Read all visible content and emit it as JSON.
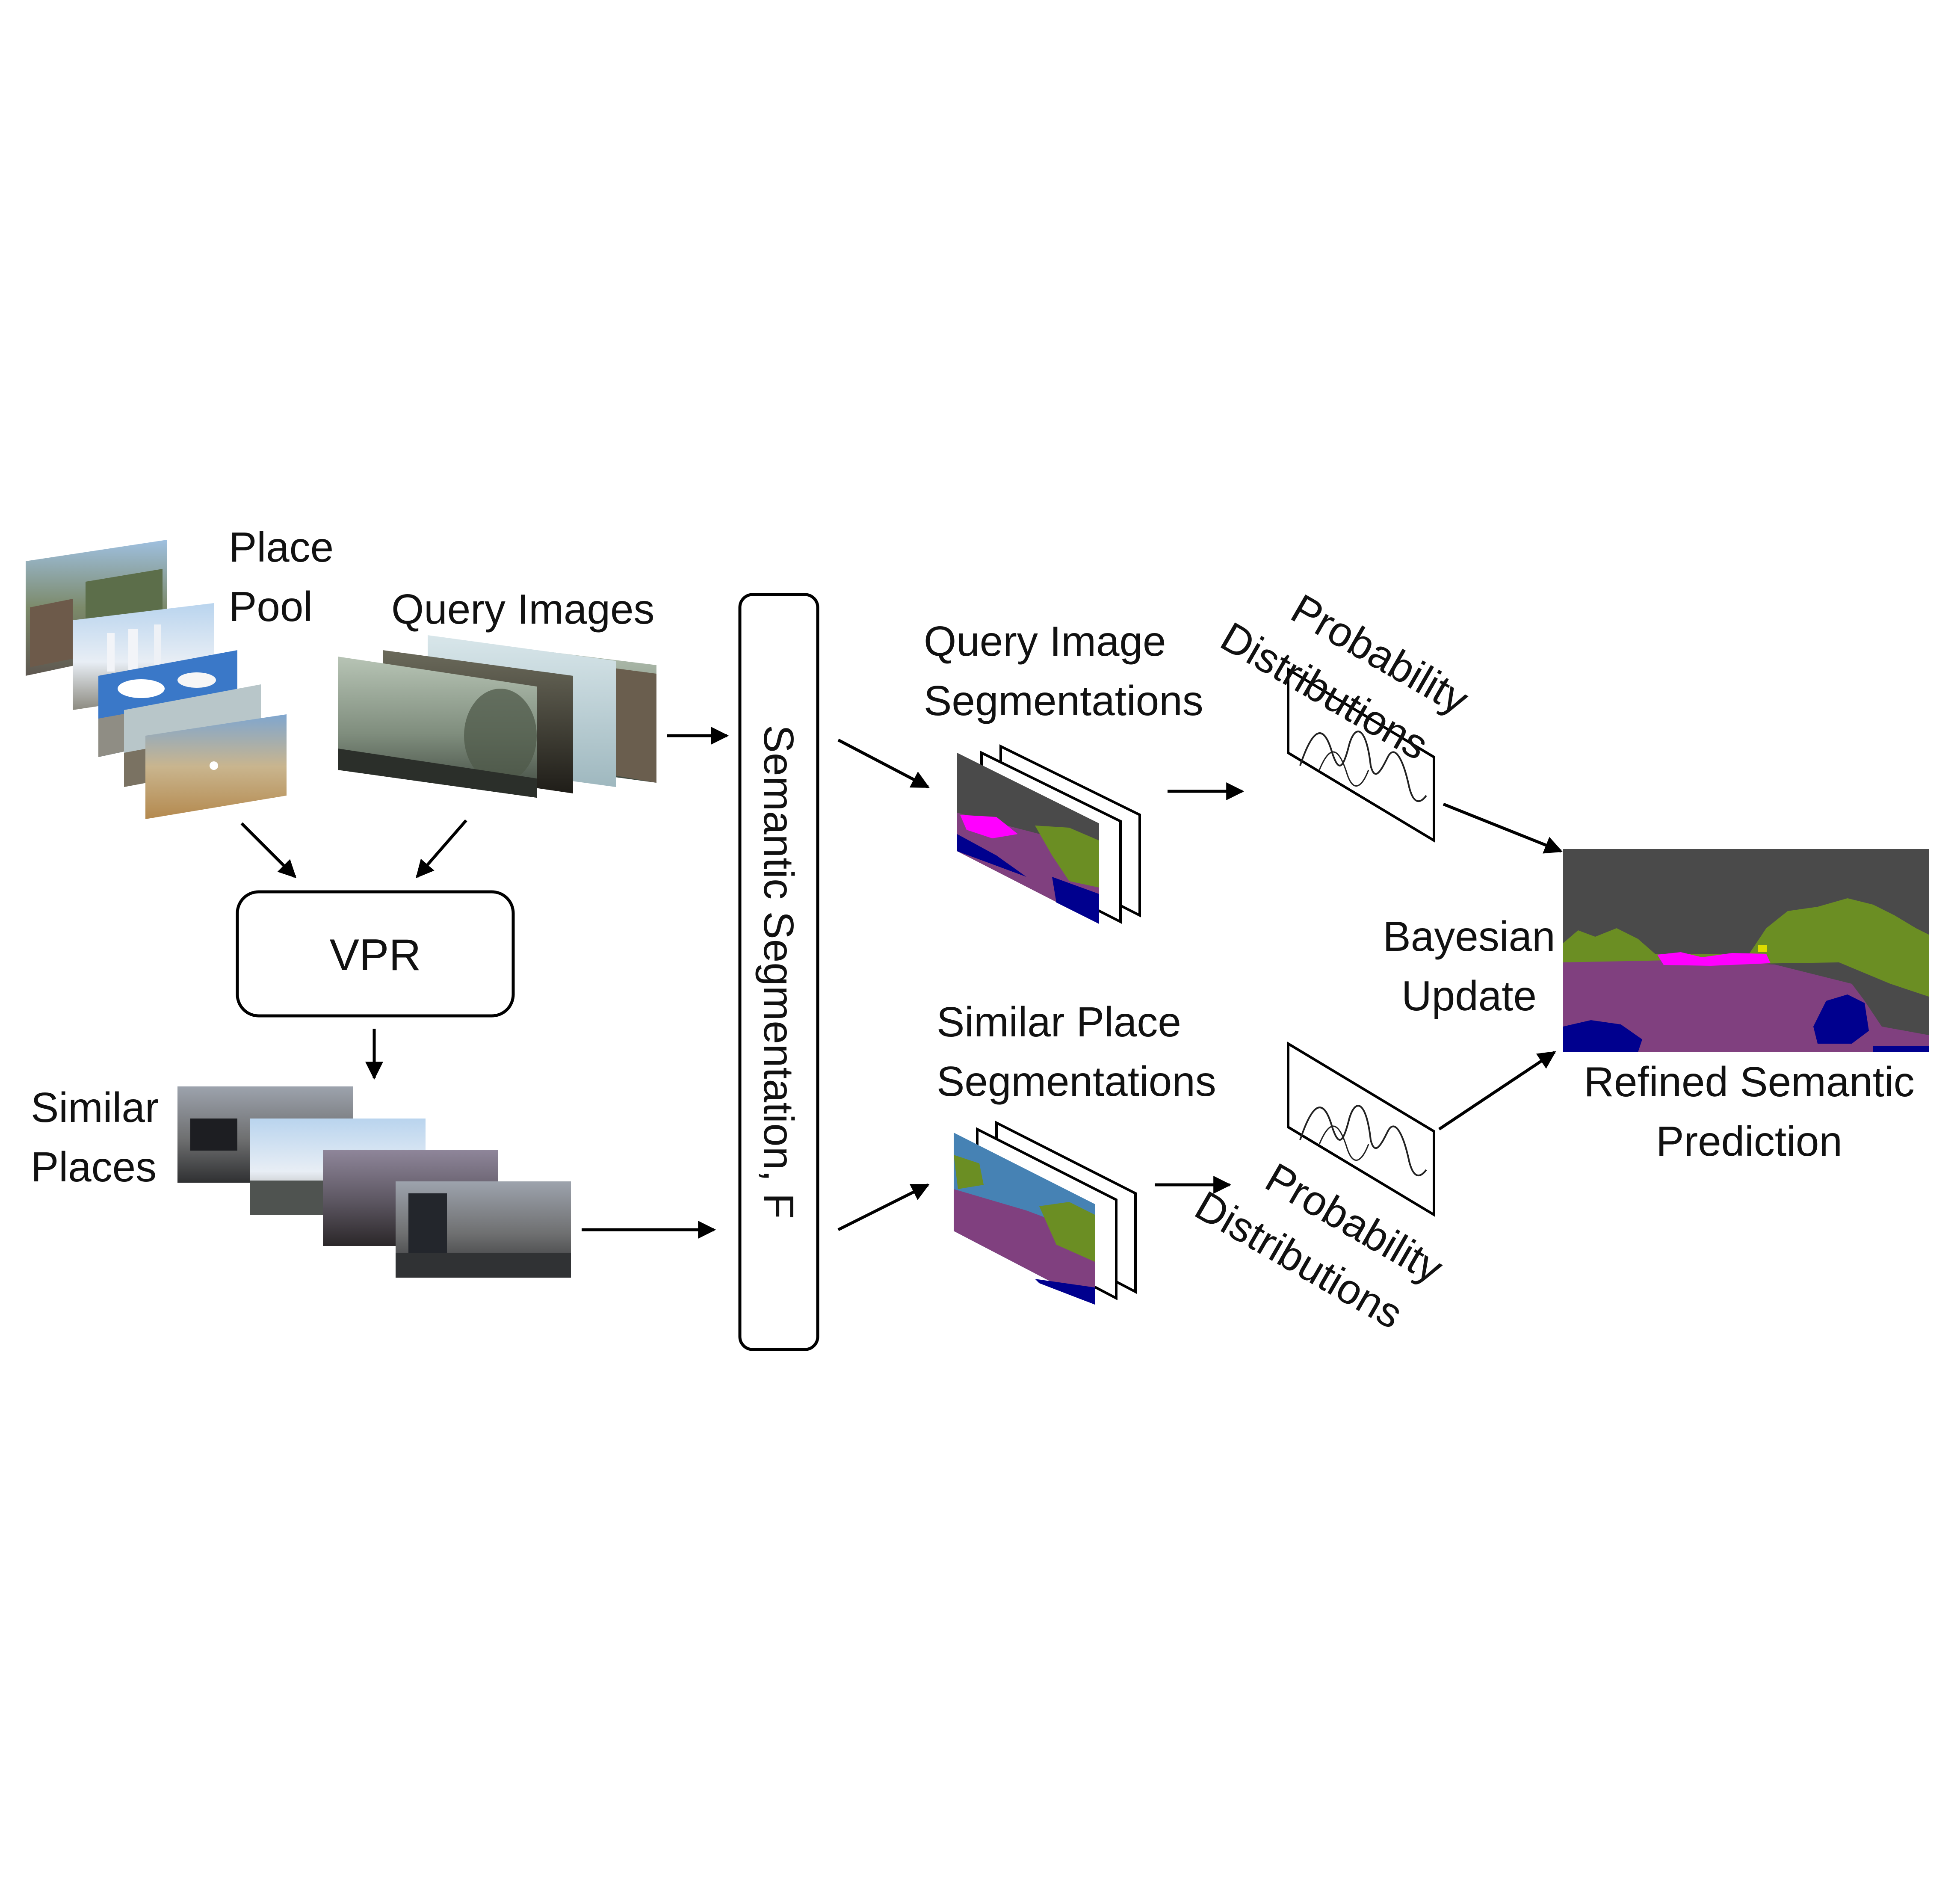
{
  "labels": {
    "place_pool": [
      "Place",
      "Pool"
    ],
    "query_images": "Query Images",
    "vpr": "VPR",
    "similar_places": [
      "Similar",
      "Places"
    ],
    "semantic_segmentation": "Semantic Segmentation, F",
    "query_image_segmentations": [
      "Query Image",
      "Segmentations"
    ],
    "similar_place_segmentations": [
      "Similar Place",
      "Segmentations"
    ],
    "probability_distributions_top": [
      "Probability",
      "Distributions"
    ],
    "probability_distributions_bottom": [
      "Probability",
      "Distributions"
    ],
    "bayesian_update": [
      "Bayesian",
      "Update"
    ],
    "refined_semantic_prediction": [
      "Refined Semantic",
      "Prediction"
    ]
  },
  "colors": {
    "seg_sky": "#4a4a4a",
    "seg_vegetation": "#6b8e23",
    "seg_road": "#80407f",
    "seg_car": "#00008e",
    "seg_sign": "#ff00ff",
    "seg_light": "#dcdc00",
    "seg_sky_blue": "#4682b4"
  }
}
